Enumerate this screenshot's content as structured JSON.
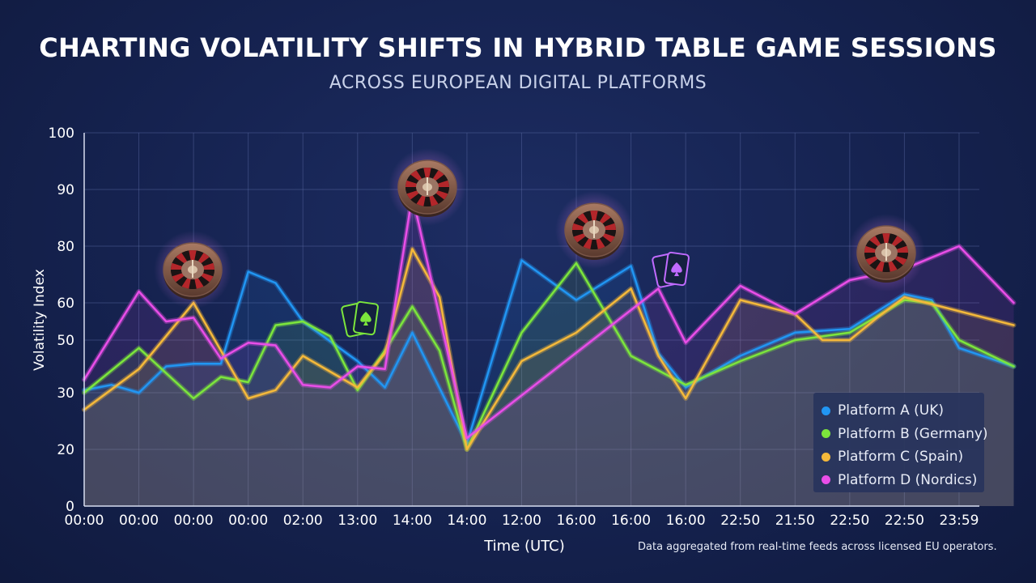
{
  "header": {
    "title": "CHARTING VOLATILITY SHIFTS IN HYBRID TABLE GAME SESSIONS",
    "subtitle": "ACROSS EUROPEAN DIGITAL PLATFORMS"
  },
  "footnote": "Data aggregated from real-time feeds across licensed EU operators.",
  "chart_data": {
    "type": "line",
    "title": "CHARTING VOLATILITY SHIFTS IN HYBRID TABLE GAME SESSIONS",
    "subtitle": "ACROSS EUROPEAN DIGITAL PLATFORMS",
    "xlabel": "Time (UTC)",
    "ylabel": "Volatility Index",
    "x_tick_labels": [
      "00:00",
      "00:00",
      "00:00",
      "00:00",
      "02:00",
      "13:00",
      "14:00",
      "14:00",
      "12:00",
      "16:00",
      "16:00",
      "16:00",
      "22:50",
      "21:50",
      "22:50",
      "22:50",
      "23:59"
    ],
    "y_tick_labels": [
      "0",
      "20",
      "30",
      "50",
      "60",
      "80",
      "90",
      "100"
    ],
    "y_tick_values": [
      0,
      20,
      30,
      50,
      60,
      80,
      90,
      100
    ],
    "ylim": [
      0,
      100
    ],
    "grid": true,
    "legend_position": "bottom-right",
    "series": [
      {
        "name": "Platform A (UK)",
        "color": "#2196f3",
        "points": [
          [
            0,
            31
          ],
          [
            0.5,
            33
          ],
          [
            1,
            30
          ],
          [
            1.5,
            40
          ],
          [
            2,
            41
          ],
          [
            2.5,
            41
          ],
          [
            3,
            71
          ],
          [
            3.5,
            67
          ],
          [
            4,
            55
          ],
          [
            5,
            42
          ],
          [
            5.5,
            32
          ],
          [
            6,
            52
          ],
          [
            7,
            21
          ],
          [
            8,
            75
          ],
          [
            9,
            61
          ],
          [
            10,
            73
          ],
          [
            10.5,
            45
          ],
          [
            11,
            32
          ],
          [
            12,
            44
          ],
          [
            13,
            52
          ],
          [
            14,
            53
          ],
          [
            15,
            63
          ],
          [
            15.5,
            61
          ],
          [
            16,
            47
          ],
          [
            17,
            40
          ]
        ]
      },
      {
        "name": "Platform B (Germany)",
        "color": "#7ce63c",
        "points": [
          [
            0,
            30
          ],
          [
            1,
            47
          ],
          [
            2,
            29
          ],
          [
            2.5,
            36
          ],
          [
            3,
            34
          ],
          [
            3.5,
            54
          ],
          [
            4,
            55
          ],
          [
            4.5,
            51
          ],
          [
            5,
            31
          ],
          [
            5.5,
            46
          ],
          [
            6,
            59
          ],
          [
            6.5,
            46
          ],
          [
            7,
            20
          ],
          [
            8,
            52
          ],
          [
            9,
            74
          ],
          [
            10,
            44
          ],
          [
            11,
            33
          ],
          [
            12,
            42
          ],
          [
            13,
            50
          ],
          [
            14,
            52
          ],
          [
            15,
            61
          ],
          [
            15.5,
            60
          ],
          [
            16,
            50
          ],
          [
            17,
            40
          ]
        ]
      },
      {
        "name": "Platform C (Spain)",
        "color": "#f5b93a",
        "points": [
          [
            0,
            27
          ],
          [
            1,
            39
          ],
          [
            2,
            60
          ],
          [
            3,
            29
          ],
          [
            3.5,
            31
          ],
          [
            4,
            44
          ],
          [
            5,
            32
          ],
          [
            5.5,
            45
          ],
          [
            6,
            79
          ],
          [
            6.5,
            62
          ],
          [
            7,
            20
          ],
          [
            8,
            42
          ],
          [
            9,
            52
          ],
          [
            10,
            65
          ],
          [
            10.5,
            44
          ],
          [
            11,
            29
          ],
          [
            12,
            61
          ],
          [
            13,
            57
          ],
          [
            13.5,
            50
          ],
          [
            14,
            50
          ],
          [
            14.5,
            56
          ],
          [
            15,
            62
          ],
          [
            17,
            54
          ]
        ]
      },
      {
        "name": "Platform D (Nordics)",
        "color": "#e94ee8",
        "points": [
          [
            0,
            35
          ],
          [
            1,
            64
          ],
          [
            1.5,
            55
          ],
          [
            2,
            56
          ],
          [
            2.5,
            43
          ],
          [
            3,
            49
          ],
          [
            3.5,
            48
          ],
          [
            4,
            33
          ],
          [
            4.5,
            32
          ],
          [
            5,
            40
          ],
          [
            5.5,
            39
          ],
          [
            6,
            89
          ],
          [
            7,
            22
          ],
          [
            10.5,
            65
          ],
          [
            11,
            49
          ],
          [
            12,
            66
          ],
          [
            13,
            57
          ],
          [
            14,
            68
          ],
          [
            15,
            72
          ],
          [
            16,
            80
          ],
          [
            17,
            60
          ]
        ]
      }
    ]
  }
}
